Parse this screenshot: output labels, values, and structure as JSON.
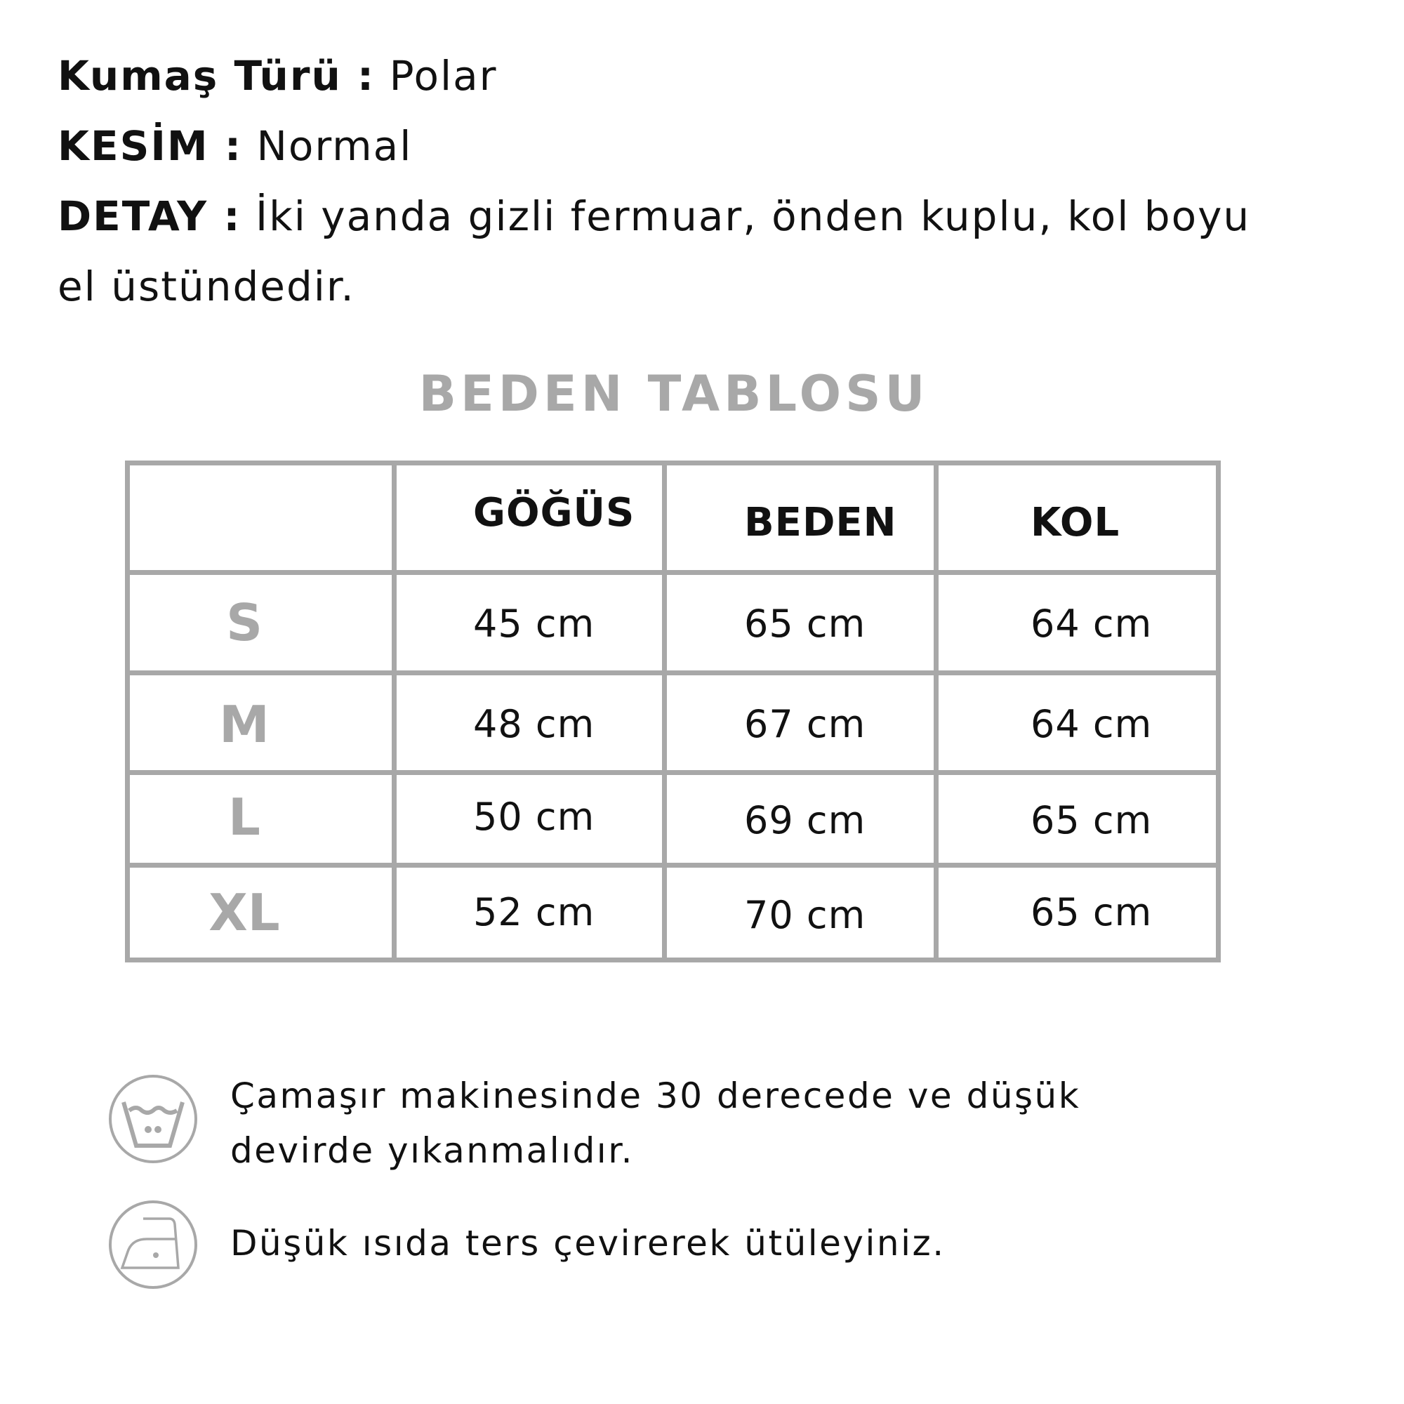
{
  "details": [
    {
      "label": "Kumaş Türü :",
      "value": "Polar"
    },
    {
      "label": "KESİM :",
      "value": "Normal"
    },
    {
      "label": "DETAY :",
      "value": "İki yanda gizli fermuar, önden kuplu, kol boyu",
      "value_cont": "el üstündedir."
    }
  ],
  "table": {
    "title": "BEDEN TABLOSU",
    "headers": [
      "GÖĞÜS",
      "BEDEN",
      "KOL"
    ],
    "rows": [
      {
        "size": "S",
        "values": [
          "45 cm",
          "65 cm",
          "64 cm"
        ]
      },
      {
        "size": "M",
        "values": [
          "48 cm",
          "67 cm",
          "64 cm"
        ]
      },
      {
        "size": "L",
        "values": [
          "50 cm",
          "69 cm",
          "65 cm"
        ]
      },
      {
        "size": "XL",
        "values": [
          "52 cm",
          "70 cm",
          "65 cm"
        ]
      }
    ]
  },
  "care": [
    {
      "icon": "wash-30-gentle-icon",
      "line1": "Çamaşır makinesinde 30 derecede ve düşük",
      "line2": "devirde yıkanmalıdır."
    },
    {
      "icon": "iron-low-icon",
      "line1": "Düşük ısıda ters çevirerek ütüleyiniz."
    }
  ],
  "colors": {
    "gray": "#a8a8a8",
    "text": "#111111"
  }
}
